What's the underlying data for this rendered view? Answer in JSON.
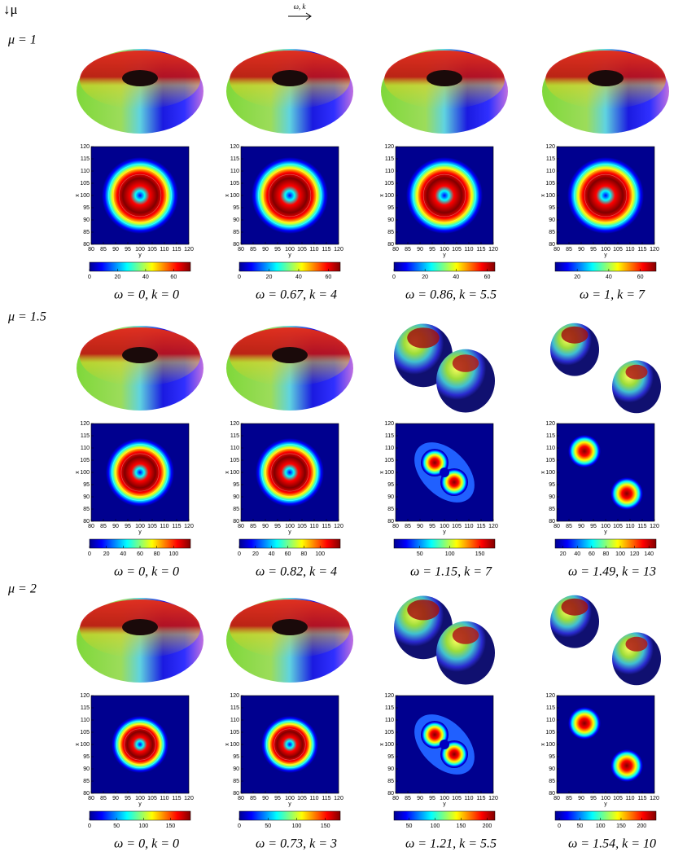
{
  "header": {
    "mu_axis": "↓μ",
    "omega_k_axis": "ω, k"
  },
  "contour_axes": {
    "xlabel": "y",
    "ylabel": "x",
    "lim": [
      80,
      120
    ],
    "ticks": [
      80,
      85,
      90,
      95,
      100,
      105,
      110,
      115,
      120
    ]
  },
  "rows": [
    {
      "label": "μ = 1",
      "cells": [
        {
          "caption": "ω = 0, k = 0",
          "clim": [
            0,
            72
          ],
          "cticks": [
            0,
            20,
            40,
            60
          ]
        },
        {
          "caption": "ω = 0.67, k = 4",
          "clim": [
            0,
            68
          ],
          "cticks": [
            0,
            20,
            40,
            60
          ]
        },
        {
          "caption": "ω = 0.86, k = 5.5",
          "clim": [
            0,
            65
          ],
          "cticks": [
            0,
            20,
            40,
            60
          ]
        },
        {
          "caption": "ω = 1, k = 7",
          "clim": [
            6,
            70
          ],
          "cticks": [
            20,
            40,
            60
          ]
        }
      ]
    },
    {
      "label": "μ = 1.5",
      "cells": [
        {
          "caption": "ω = 0, k = 0",
          "clim": [
            0,
            120
          ],
          "cticks": [
            0,
            20,
            40,
            60,
            80,
            100
          ]
        },
        {
          "caption": "ω = 0.82, k = 4",
          "clim": [
            0,
            125
          ],
          "cticks": [
            0,
            20,
            40,
            60,
            80,
            100
          ]
        },
        {
          "caption": "ω = 1.15, k = 7",
          "clim": [
            7,
            175
          ],
          "cticks": [
            50,
            100,
            150
          ]
        },
        {
          "caption": "ω = 1.49, k = 13",
          "clim": [
            9,
            150
          ],
          "cticks": [
            20,
            40,
            60,
            80,
            100,
            120,
            140
          ]
        }
      ]
    },
    {
      "label": "μ = 2",
      "cells": [
        {
          "caption": "ω = 0, k = 0",
          "clim": [
            0,
            187
          ],
          "cticks": [
            0,
            50,
            100,
            150
          ]
        },
        {
          "caption": "ω = 0.73, k = 3",
          "clim": [
            0,
            176
          ],
          "cticks": [
            0,
            50,
            100,
            150
          ]
        },
        {
          "caption": "ω = 1.21, k = 5.5",
          "clim": [
            21,
            215
          ],
          "cticks": [
            50,
            100,
            150,
            200
          ]
        },
        {
          "caption": "ω = 1.54, k = 10",
          "clim": [
            -10,
            235
          ],
          "cticks": [
            0,
            50,
            100,
            150,
            200
          ]
        }
      ]
    }
  ]
}
